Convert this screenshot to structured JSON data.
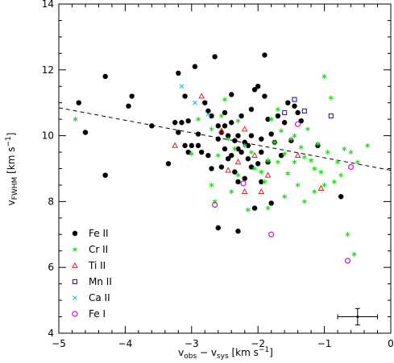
{
  "chart_data": {
    "type": "scatter",
    "title": "",
    "xlabel": {
      "main": "v",
      "sub1": "obs",
      "mid": " − v",
      "sub2": "sys",
      "tail": " [km s",
      "sup": "−1",
      "end": "]"
    },
    "ylabel": {
      "main": "v",
      "sub": "FWHM",
      "tail": " [km s",
      "sup": "−1",
      "end": "]"
    },
    "xlim": [
      -5,
      0
    ],
    "ylim": [
      4,
      14
    ],
    "x_ticks": [
      -5,
      -4,
      -3,
      -2,
      -1,
      0
    ],
    "x_tick_labels": [
      "−5",
      "−4",
      "−3",
      "−2",
      "−1",
      "0"
    ],
    "y_ticks": [
      4,
      6,
      8,
      10,
      12,
      14
    ],
    "y_tick_labels": [
      "4",
      "6",
      "8",
      "10",
      "12",
      "14"
    ],
    "legend_position": "lower-left",
    "series": [
      {
        "name": "Fe II",
        "marker": "filled-circle",
        "color": "#000000",
        "points": [
          [
            -4.7,
            11.0
          ],
          [
            -4.6,
            10.1
          ],
          [
            -4.3,
            11.8
          ],
          [
            -4.3,
            8.8
          ],
          [
            -3.95,
            10.9
          ],
          [
            -3.9,
            11.2
          ],
          [
            -3.6,
            10.3
          ],
          [
            -3.35,
            9.15
          ],
          [
            -3.25,
            10.4
          ],
          [
            -3.2,
            10.1
          ],
          [
            -3.15,
            10.4
          ],
          [
            -3.1,
            11.2
          ],
          [
            -3.05,
            10.45
          ],
          [
            -3.0,
            9.7
          ],
          [
            -2.95,
            12.1
          ],
          [
            -2.9,
            10.05
          ],
          [
            -2.8,
            11.0
          ],
          [
            -2.75,
            10.75
          ],
          [
            -2.7,
            10.6
          ],
          [
            -2.65,
            12.4
          ],
          [
            -2.6,
            10.3
          ],
          [
            -2.55,
            10.1
          ],
          [
            -2.5,
            10.7
          ],
          [
            -2.45,
            10.0
          ],
          [
            -2.4,
            9.4
          ],
          [
            -2.35,
            8.9
          ],
          [
            -2.3,
            10.0
          ],
          [
            -2.25,
            9.5
          ],
          [
            -2.2,
            9.8
          ],
          [
            -2.15,
            9.7
          ],
          [
            -2.1,
            10.0
          ],
          [
            -2.05,
            11.4
          ],
          [
            -2.0,
            11.5
          ],
          [
            -1.95,
            9.9
          ],
          [
            -1.9,
            12.45
          ],
          [
            -1.85,
            10.5
          ],
          [
            -1.8,
            10.05
          ],
          [
            -1.75,
            9.8
          ],
          [
            -1.7,
            10.6
          ],
          [
            -1.6,
            10.4
          ],
          [
            -1.55,
            11.0
          ],
          [
            -1.5,
            9.85
          ],
          [
            -1.45,
            10.9
          ],
          [
            -1.4,
            10.7
          ],
          [
            -1.35,
            10.45
          ],
          [
            -1.1,
            9.7
          ],
          [
            -0.75,
            8.15
          ],
          [
            -2.85,
            9.5
          ],
          [
            -2.6,
            9.9
          ],
          [
            -2.45,
            9.3
          ],
          [
            -2.3,
            9.6
          ],
          [
            -2.15,
            9.3
          ],
          [
            -2.0,
            9.15
          ],
          [
            -1.95,
            8.6
          ],
          [
            -2.2,
            8.7
          ],
          [
            -2.05,
            7.8
          ],
          [
            -2.5,
            9.6
          ],
          [
            -2.4,
            10.4
          ],
          [
            -2.25,
            10.6
          ],
          [
            -2.9,
            9.7
          ],
          [
            -3.05,
            9.5
          ],
          [
            -2.7,
            9.0
          ],
          [
            -2.55,
            9.05
          ],
          [
            -2.35,
            9.85
          ],
          [
            -1.95,
            9.5
          ],
          [
            -1.85,
            9.2
          ],
          [
            -2.1,
            9.05
          ],
          [
            -2.3,
            8.6
          ],
          [
            -1.65,
            9.4
          ],
          [
            -1.8,
            7.95
          ],
          [
            -2.6,
            7.2
          ],
          [
            -2.3,
            7.1
          ],
          [
            -2.75,
            9.4
          ],
          [
            -3.1,
            9.7
          ],
          [
            -2.1,
            10.8
          ],
          [
            -1.9,
            11.2
          ],
          [
            -2.4,
            11.25
          ],
          [
            -3.2,
            11.9
          ],
          [
            -2.5,
            10.3
          ]
        ]
      },
      {
        "name": "Cr II",
        "marker": "asterisk",
        "color": "#22dd22",
        "points": [
          [
            -4.75,
            10.5
          ],
          [
            -3.0,
            9.45
          ],
          [
            -2.9,
            10.5
          ],
          [
            -2.7,
            10.2
          ],
          [
            -2.55,
            10.6
          ],
          [
            -2.5,
            11.1
          ],
          [
            -2.45,
            9.9
          ],
          [
            -2.35,
            9.6
          ],
          [
            -2.3,
            10.45
          ],
          [
            -2.2,
            9.7
          ],
          [
            -2.1,
            9.5
          ],
          [
            -2.05,
            9.0
          ],
          [
            -1.95,
            8.9
          ],
          [
            -1.9,
            8.6
          ],
          [
            -1.85,
            9.25
          ],
          [
            -1.8,
            10.5
          ],
          [
            -1.75,
            9.8
          ],
          [
            -1.7,
            9.2
          ],
          [
            -1.65,
            10.15
          ],
          [
            -1.6,
            9.45
          ],
          [
            -1.55,
            8.85
          ],
          [
            -1.5,
            9.9
          ],
          [
            -1.45,
            9.2
          ],
          [
            -1.4,
            8.5
          ],
          [
            -1.35,
            9.65
          ],
          [
            -1.3,
            8.0
          ],
          [
            -1.25,
            10.2
          ],
          [
            -1.2,
            9.25
          ],
          [
            -1.15,
            9.0
          ],
          [
            -1.1,
            9.75
          ],
          [
            -1.05,
            8.9
          ],
          [
            -1.0,
            11.8
          ],
          [
            -0.95,
            9.5
          ],
          [
            -0.9,
            11.15
          ],
          [
            -0.85,
            8.6
          ],
          [
            -0.8,
            9.2
          ],
          [
            -0.75,
            8.8
          ],
          [
            -0.7,
            9.6
          ],
          [
            -0.65,
            7.0
          ],
          [
            -0.6,
            9.5
          ],
          [
            -0.55,
            6.4
          ],
          [
            -0.5,
            9.2
          ],
          [
            -0.35,
            9.7
          ],
          [
            -1.7,
            10.8
          ],
          [
            -1.6,
            8.15
          ],
          [
            -1.85,
            7.8
          ],
          [
            -2.15,
            7.75
          ],
          [
            -2.4,
            8.3
          ],
          [
            -2.65,
            8.0
          ],
          [
            -2.7,
            8.5
          ],
          [
            -2.6,
            9.4
          ],
          [
            -2.3,
            8.8
          ],
          [
            -1.3,
            9.35
          ],
          [
            -1.15,
            8.3
          ],
          [
            -1.45,
            10.0
          ],
          [
            -1.0,
            8.5
          ]
        ]
      },
      {
        "name": "Ti II",
        "marker": "open-triangle",
        "color": "#dd2222",
        "points": [
          [
            -3.25,
            9.7
          ],
          [
            -2.85,
            11.2
          ],
          [
            -2.55,
            10.15
          ],
          [
            -2.3,
            9.2
          ],
          [
            -2.2,
            10.2
          ],
          [
            -2.05,
            9.4
          ],
          [
            -1.95,
            8.3
          ],
          [
            -1.85,
            8.8
          ],
          [
            -2.45,
            8.95
          ],
          [
            -2.2,
            8.3
          ],
          [
            -1.4,
            9.4
          ],
          [
            -1.05,
            8.4
          ]
        ]
      },
      {
        "name": "Mn II",
        "marker": "open-square",
        "color": "#2222aa",
        "points": [
          [
            -1.6,
            10.7
          ],
          [
            -1.45,
            11.1
          ],
          [
            -1.3,
            10.75
          ],
          [
            -0.9,
            10.6
          ]
        ]
      },
      {
        "name": "Ca II",
        "marker": "cross",
        "color": "#22bbdd",
        "points": [
          [
            -3.15,
            11.5
          ],
          [
            -2.95,
            11.0
          ],
          [
            -2.75,
            10.65
          ]
        ]
      },
      {
        "name": "Fe I",
        "marker": "open-circle",
        "color": "#cc22cc",
        "points": [
          [
            -2.65,
            7.9
          ],
          [
            -1.8,
            7.0
          ],
          [
            -1.4,
            10.35
          ],
          [
            -0.65,
            6.2
          ],
          [
            -0.6,
            9.05
          ],
          [
            -2.22,
            8.55
          ]
        ]
      }
    ],
    "trend_line": {
      "style": "dashed",
      "from": [
        -5,
        10.85
      ],
      "to": [
        0,
        8.95
      ]
    },
    "error_bar": {
      "center": [
        -0.5,
        4.5
      ],
      "xerr": 0.3,
      "yerr": 0.25
    }
  }
}
